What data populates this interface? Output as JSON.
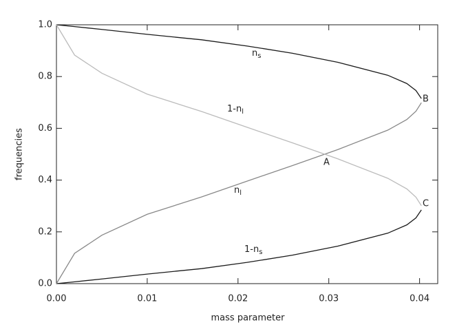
{
  "chart_data": {
    "type": "line",
    "x_label": "mass parameter",
    "y_label": "frequencies",
    "x": [
      0,
      0.002,
      0.005,
      0.01,
      0.016,
      0.021,
      0.026,
      0.031,
      0.0365,
      0.0386,
      0.0396,
      0.0402
    ],
    "series": [
      {
        "name": "n_s",
        "color": "#1a1a1a",
        "values": [
          1,
          0.993,
          0.982,
          0.963,
          0.942,
          0.918,
          0.89,
          0.855,
          0.805,
          0.773,
          0.746,
          0.715
        ]
      },
      {
        "name": "1-n_s",
        "color": "#1a1a1a",
        "values": [
          0,
          0.007,
          0.018,
          0.037,
          0.058,
          0.082,
          0.11,
          0.145,
          0.195,
          0.227,
          0.254,
          0.285
        ]
      },
      {
        "name": "n_l",
        "color": "#888888",
        "values": [
          0,
          0.117,
          0.187,
          0.268,
          0.335,
          0.396,
          0.456,
          0.518,
          0.593,
          0.634,
          0.666,
          0.699
        ]
      },
      {
        "name": "1-n_l",
        "color": "#bbbbbb",
        "values": [
          1,
          0.883,
          0.813,
          0.732,
          0.665,
          0.604,
          0.544,
          0.482,
          0.407,
          0.366,
          0.334,
          0.301
        ]
      }
    ],
    "annotations": [
      {
        "text": "n",
        "sub": "s"
      },
      {
        "text": "1-n",
        "sub": "l"
      },
      {
        "text": "A"
      },
      {
        "text": "n",
        "sub": "l"
      },
      {
        "text": "B"
      },
      {
        "text": "C"
      },
      {
        "text": "1-n",
        "sub": "s"
      }
    ],
    "xlim": [
      0,
      0.042
    ],
    "xticks": [
      {
        "value": 0,
        "label": "0.00"
      },
      {
        "value": 0.01,
        "label": "0.01"
      },
      {
        "value": 0.02,
        "label": "0.02"
      },
      {
        "value": 0.03,
        "label": "0.03"
      },
      {
        "value": 0.04,
        "label": "0.04"
      }
    ],
    "ylim": [
      0,
      1
    ],
    "yticks": [
      {
        "value": 0,
        "label": "0.0"
      },
      {
        "value": 0.2,
        "label": "0.2"
      },
      {
        "value": 0.4,
        "label": "0.4"
      },
      {
        "value": 0.6,
        "label": "0.6"
      },
      {
        "value": 0.8,
        "label": "0.8"
      },
      {
        "value": 1,
        "label": "1.0"
      }
    ]
  }
}
